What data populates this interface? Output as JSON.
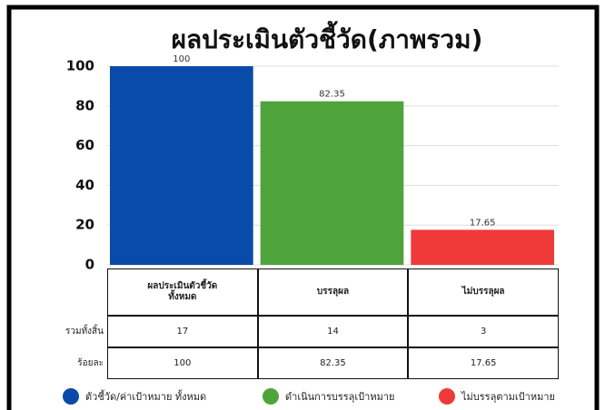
{
  "chart_data": {
    "type": "bar",
    "title": "ผลประเมินตัวชี้วัด(ภาพรวม)",
    "categories": [
      "ผลประเมินตัวชี้วัด\nทั้งหมด",
      "บรรลุผล",
      "ไม่บรรลุผล"
    ],
    "values": [
      100,
      82.35,
      17.65
    ],
    "colors": [
      "#0a4aa8",
      "#4ea43a",
      "#f03a3a"
    ],
    "legend": [
      "ตัวชี้วัด/ค่าเป้าหมาย ทั้งหมด",
      "ดำเนินการบรรลุเป้าหมาย",
      "ไม่บรรลุตามเป้าหมาย"
    ],
    "ylim": [
      0,
      100
    ],
    "yticks": [
      0,
      20,
      40,
      60,
      80,
      100
    ],
    "grid": true,
    "table": {
      "row_labels": [
        "รวมทั้งสิ้น",
        "ร้อยละ"
      ],
      "rows": [
        [
          17,
          14,
          3
        ],
        [
          100,
          82.35,
          17.65
        ]
      ]
    }
  }
}
